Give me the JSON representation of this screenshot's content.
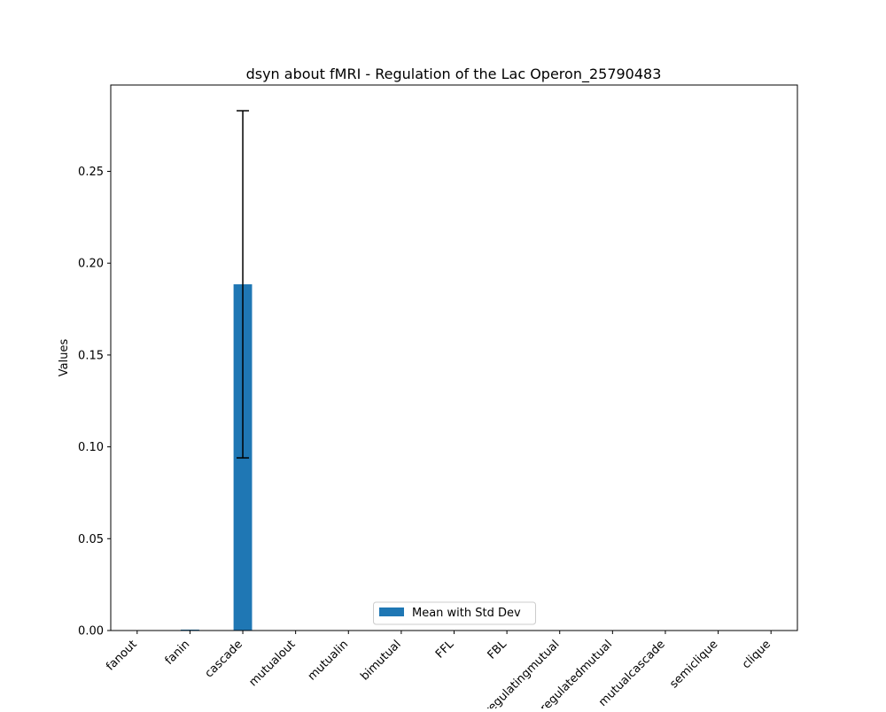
{
  "chart_data": {
    "type": "bar",
    "title": "dsyn about fMRI - Regulation of the Lac Operon_25790483",
    "xlabel": "",
    "ylabel": "Values",
    "categories": [
      "fanout",
      "fanin",
      "cascade",
      "mutualout",
      "mutualin",
      "bimutual",
      "FFL",
      "FBL",
      "regulatingmutual",
      "regulatedmutual",
      "mutualcascade",
      "semiclique",
      "clique"
    ],
    "series": [
      {
        "name": "Mean with Std Dev",
        "values": [
          0.0,
          0.0005,
          0.1885,
          0.0,
          0.0,
          0.0,
          0.0,
          0.0,
          0.0,
          0.0,
          0.0,
          0.0,
          0.0
        ],
        "errors": [
          0.0,
          0.0,
          0.0945,
          0.0,
          0.0,
          0.0,
          0.0,
          0.0,
          0.0,
          0.0,
          0.0,
          0.0,
          0.0
        ]
      }
    ],
    "ylim": [
      0,
      0.297
    ],
    "yticks": [
      "0.00",
      "0.05",
      "0.10",
      "0.15",
      "0.20",
      "0.25"
    ],
    "ytick_values": [
      0,
      0.05,
      0.1,
      0.15,
      0.2,
      0.25
    ],
    "grid": false,
    "legend_position": "lower center",
    "colors": {
      "bar": "#1f77b4",
      "error": "#000000",
      "axis": "#000000"
    }
  }
}
